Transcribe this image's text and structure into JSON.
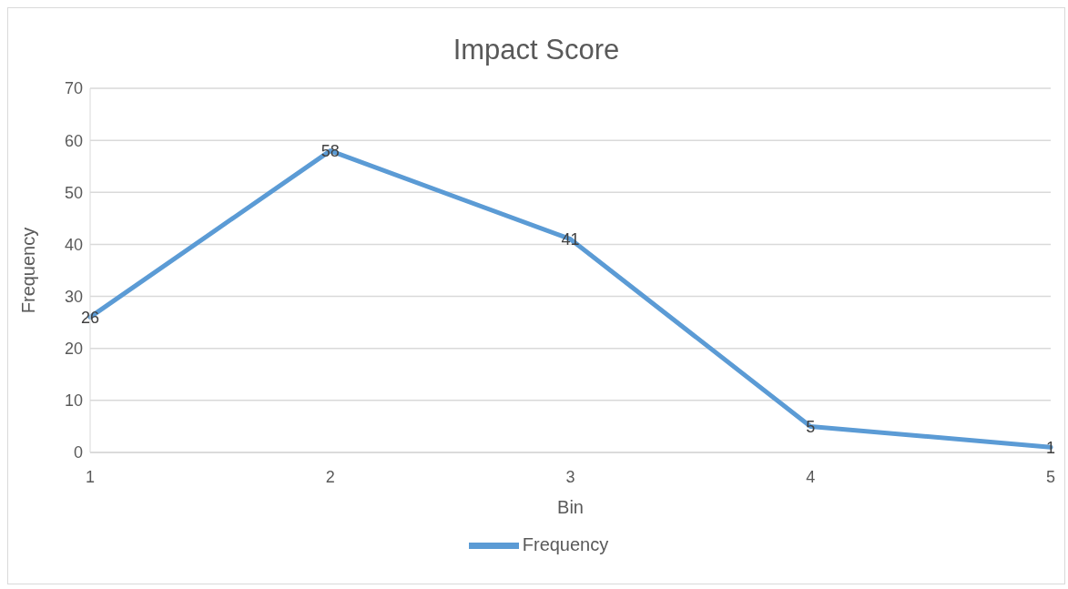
{
  "chart_data": {
    "type": "line",
    "title": "Impact Score",
    "xlabel": "Bin",
    "ylabel": "Frequency",
    "categories": [
      "1",
      "2",
      "3",
      "4",
      "5"
    ],
    "series": [
      {
        "name": "Frequency",
        "color": "#5b9bd5",
        "values": [
          26,
          58,
          41,
          5,
          1
        ]
      }
    ],
    "ylim": [
      0,
      70
    ],
    "yticks": [
      0,
      10,
      20,
      30,
      40,
      50,
      60,
      70
    ],
    "grid": "y",
    "legend": "bottom",
    "marker": "none",
    "line_style": "solid",
    "data_labels": true
  }
}
